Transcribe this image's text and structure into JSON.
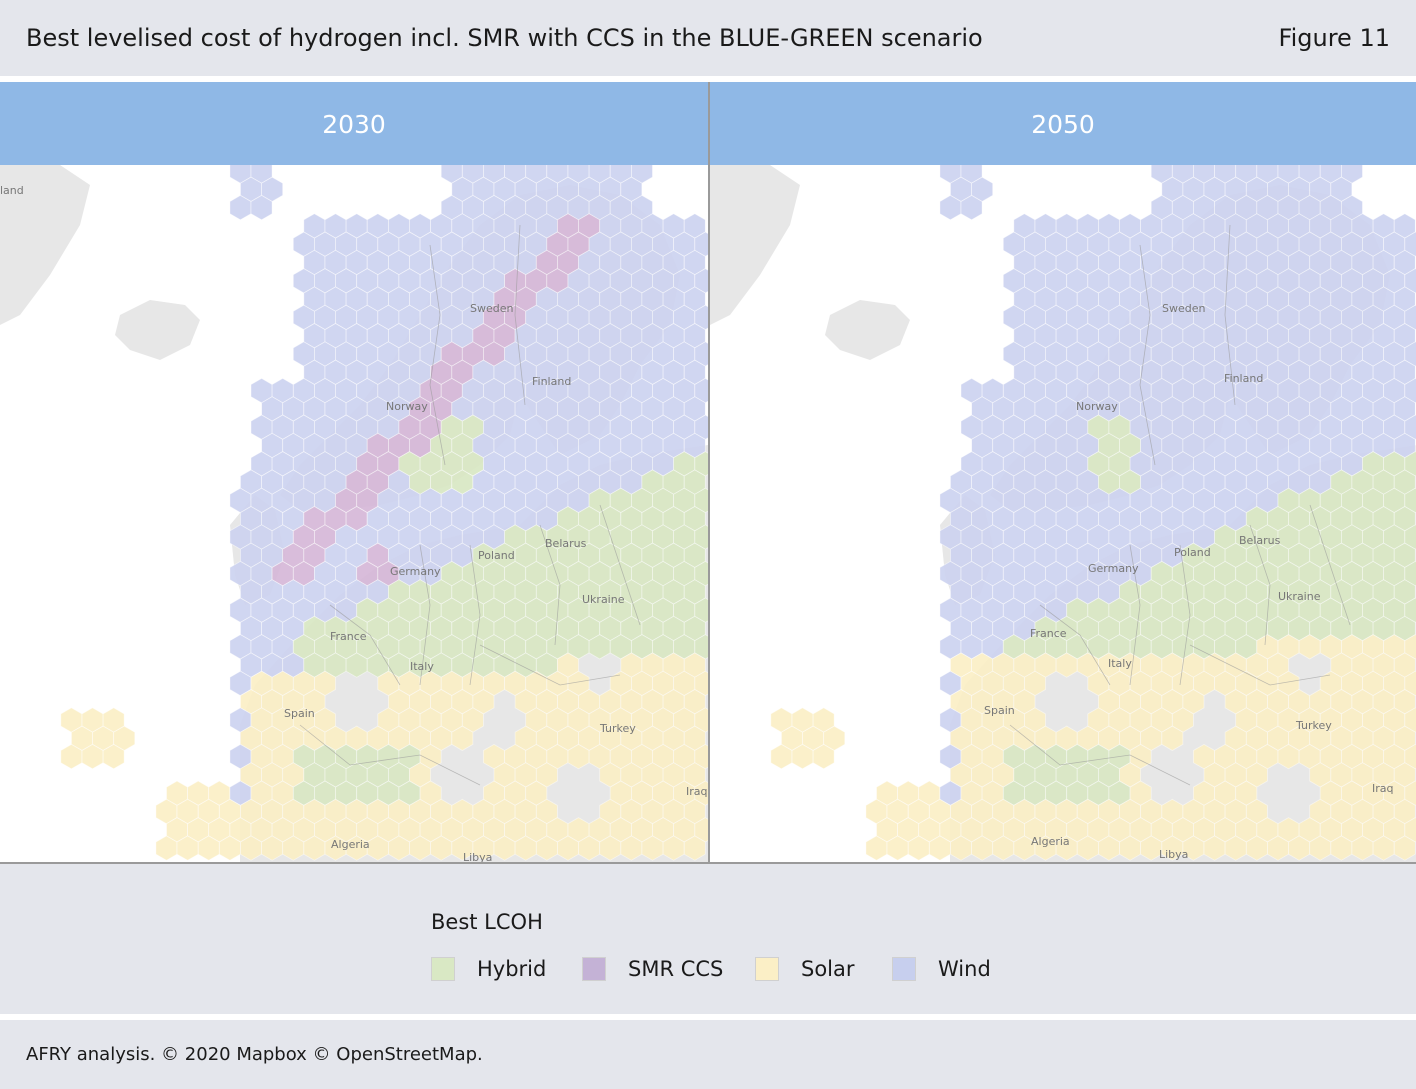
{
  "header": {
    "title": "Best levelised cost of hydrogen incl. SMR with CCS in the BLUE-GREEN scenario",
    "figure_label": "Figure 11"
  },
  "panels": [
    {
      "year": "2030",
      "labels": [
        "Sweden",
        "Finland",
        "Norway",
        "Belarus",
        "Poland",
        "Germany",
        "Ukraine",
        "France",
        "Italy",
        "Spain",
        "Turkey",
        "Iraq",
        "Algeria",
        "Libya",
        "land"
      ]
    },
    {
      "year": "2050",
      "labels": [
        "Sweden",
        "Finland",
        "Norway",
        "Belarus",
        "Poland",
        "Germany",
        "Ukraine",
        "France",
        "Italy",
        "Spain",
        "Turkey",
        "Iraq",
        "Algeria",
        "Libya"
      ]
    }
  ],
  "legend": {
    "title": "Best LCOH",
    "items": [
      {
        "label": "Hybrid",
        "color": "#d9e8c4"
      },
      {
        "label": "SMR CCS",
        "color": "#c4b2d6"
      },
      {
        "label": "Solar",
        "color": "#fbefc6"
      },
      {
        "label": "Wind",
        "color": "#c7cfee"
      }
    ]
  },
  "footer": {
    "source": "AFRY analysis. © 2020 Mapbox © OpenStreetMap."
  },
  "colors": {
    "hybrid": "#d9e8c4",
    "smr": "#d6b8d8",
    "solar": "#fbefc6",
    "wind": "#cdd3f0",
    "land": "#e7e7e7",
    "water": "#ffffff",
    "header": "#8fb8e6"
  }
}
